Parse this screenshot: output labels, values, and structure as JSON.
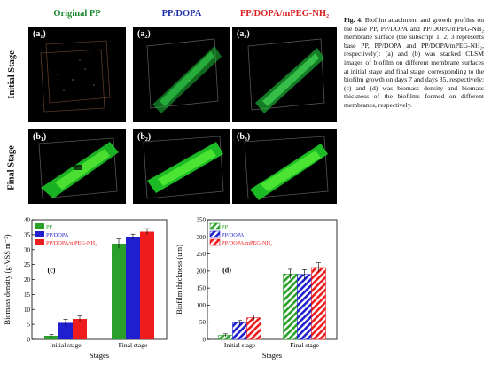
{
  "columns": [
    "Original  PP",
    "PP/DOPA",
    "PP/DOPA/mPEG-NH₂"
  ],
  "column_colors": [
    "#1a8a2e",
    "#1e2ea8",
    "#d81e1e"
  ],
  "rows": [
    "Initial Stage",
    "Final Stage"
  ],
  "panels": {
    "initial": [
      {
        "label": "(a₁)"
      },
      {
        "label": "(a₂)"
      },
      {
        "label": "(a₃)"
      }
    ],
    "final": [
      {
        "label": "(b₁)"
      },
      {
        "label": "(b₂)"
      },
      {
        "label": "(b₃)"
      }
    ]
  },
  "caption": {
    "label": "Fig. 4.",
    "text": "Biofilm attachment and growth profiles on the base PP, PP/DOPA and PP/DOPA/mPEG-NH₂ membrane surface (the subscript 1, 2, 3 represents base PP, PP/DOPA and PP/DOPA/mPEG-NH₂, respectively): (a) and (b) was stacked CLSM images of biofilm on different membrane surfaces at initial stage and final stage, corresponding to the biofilm growth on days 7 and days 35, respectively; (c) and (d) was biomass density and biomass thickness of the biofilms formed on different membranes, respectively."
  },
  "chart_data": [
    {
      "type": "bar",
      "panel_label": "(c)",
      "categories": [
        "Initial stage",
        "Final stage"
      ],
      "series": [
        {
          "name": "PP",
          "values": [
            1.2,
            32.0
          ],
          "errors": [
            0.4,
            1.6
          ],
          "color": "#2aa02a"
        },
        {
          "name": "PP/DOPA",
          "values": [
            5.5,
            34.3
          ],
          "errors": [
            1.2,
            0.9
          ],
          "color": "#1f1fcf"
        },
        {
          "name": "PP/DOPA/mPEG-NH₂",
          "values": [
            6.8,
            36.0
          ],
          "errors": [
            1.0,
            1.0
          ],
          "color": "#ee1c1c"
        }
      ],
      "ylim": [
        0,
        40
      ],
      "yticks": [
        0,
        5,
        10,
        15,
        20,
        25,
        30,
        35,
        40
      ],
      "xlabel": "Stages",
      "ylabel": "Biomass density (g·VSS m⁻²)",
      "hatched": false,
      "legend": "top-left"
    },
    {
      "type": "bar",
      "panel_label": "(d)",
      "categories": [
        "Initial stage",
        "Final stage"
      ],
      "series": [
        {
          "name": "PP",
          "values": [
            12,
            191
          ],
          "errors": [
            4,
            14
          ],
          "color": "#2aa02a"
        },
        {
          "name": "PP/DOPA",
          "values": [
            49,
            190
          ],
          "errors": [
            6,
            14
          ],
          "color": "#1f1fcf"
        },
        {
          "name": "PP/DOPA/mPEG-NH₂",
          "values": [
            63,
            210
          ],
          "errors": [
            8,
            14
          ],
          "color": "#ee1c1c"
        }
      ],
      "ylim": [
        0,
        350
      ],
      "yticks": [
        0,
        50,
        100,
        150,
        200,
        250,
        300,
        350
      ],
      "xlabel": "Stages",
      "ylabel": "Biofilm thickness (um)",
      "hatched": true,
      "legend": "top-left"
    }
  ]
}
